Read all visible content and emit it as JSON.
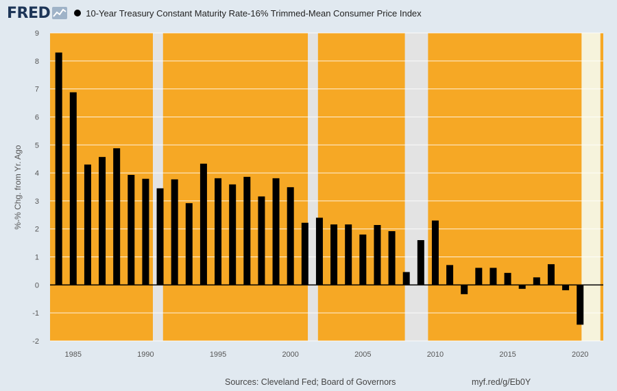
{
  "header": {
    "logo": "FRED",
    "legend_label": "10-Year Treasury Constant Maturity Rate-16% Trimmed-Mean Consumer Price Index"
  },
  "footer": {
    "sources": "Sources: Cleveland Fed; Board of Governors",
    "link": "myf.red/g/Eb0Y"
  },
  "colors": {
    "page_background": "#e1e9f0",
    "plot_background": "#f6a825",
    "recession_shading": "#e3e3e3",
    "highlight_period": "#f6f3dc",
    "bars": "#000000",
    "logo": "#1d3557"
  },
  "chart_data": {
    "type": "bar",
    "ylabel": "%-% Chg. from Yr. Ago",
    "xlabel": "",
    "ylim": [
      -2,
      9
    ],
    "yticks": [
      -2,
      -1,
      0,
      1,
      2,
      3,
      4,
      5,
      6,
      7,
      8,
      9
    ],
    "xlim": [
      1983.4,
      2021.6
    ],
    "xticks": [
      1985,
      1990,
      1995,
      2000,
      2005,
      2010,
      2015,
      2020
    ],
    "grid": true,
    "legend_position": "top-left",
    "categories": [
      1984,
      1985,
      1986,
      1987,
      1988,
      1989,
      1990,
      1991,
      1992,
      1993,
      1994,
      1995,
      1996,
      1997,
      1998,
      1999,
      2000,
      2001,
      2002,
      2003,
      2004,
      2005,
      2006,
      2007,
      2008,
      2009,
      2010,
      2011,
      2012,
      2013,
      2014,
      2015,
      2016,
      2017,
      2018,
      2019,
      2020
    ],
    "values": [
      8.3,
      6.88,
      4.3,
      4.57,
      4.88,
      3.93,
      3.79,
      3.45,
      3.77,
      2.92,
      4.33,
      3.81,
      3.59,
      3.86,
      3.16,
      3.81,
      3.49,
      2.22,
      2.4,
      2.16,
      2.16,
      1.8,
      2.14,
      1.92,
      0.46,
      1.6,
      2.3,
      0.71,
      -0.33,
      0.61,
      0.61,
      0.43,
      -0.14,
      0.27,
      0.74,
      -0.19,
      -1.42
    ],
    "recession_periods": [
      [
        1990.5,
        1991.2
      ],
      [
        2001.2,
        2001.9
      ],
      [
        2007.9,
        2009.5
      ]
    ],
    "highlight_periods": [
      [
        2020.1,
        2021.4
      ]
    ]
  }
}
